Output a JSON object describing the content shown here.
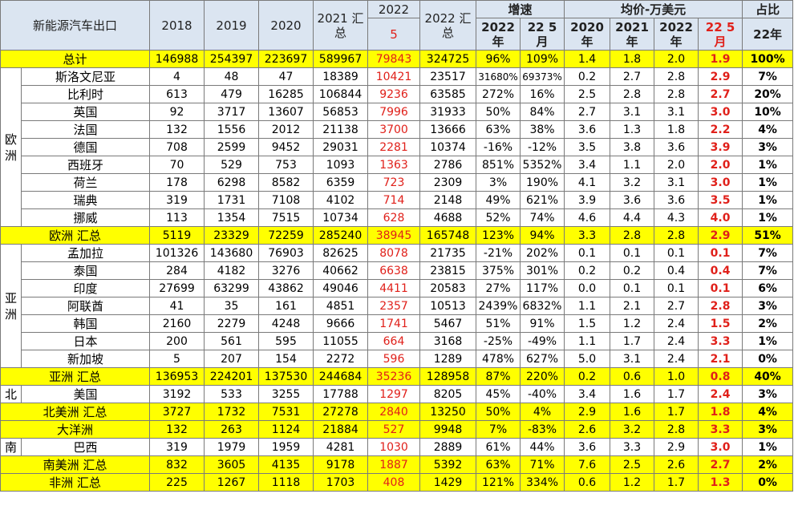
{
  "headers": {
    "title": "新能源汽车出口",
    "y2018": "2018",
    "y2019": "2019",
    "y2020": "2020",
    "y2021": "2021 汇\n总",
    "y2022_top": "2022",
    "y2022_bottom": "5",
    "y2022sum": "2022 汇\n总",
    "growth": "增速",
    "growth_a": "2022\n年",
    "growth_b": "22 5\n月",
    "avg": "均价-万美元",
    "avg_a": "2020\n年",
    "avg_b": "2021\n年",
    "avg_c": "2022\n年",
    "avg_d": "22 5\n月",
    "share": "占比",
    "share_sub": "22年"
  },
  "regions": {
    "europe": "欧\n洲",
    "asia": "亚\n洲",
    "north": "北",
    "south": "南"
  },
  "rows": [
    {
      "name": "总计",
      "cells": [
        "146988",
        "254397",
        "223697",
        "589967",
        "79843",
        "324725",
        "96%",
        "109%",
        "1.4",
        "1.8",
        "2.0",
        "1.9",
        "100%"
      ]
    },
    {
      "name": "斯洛文尼亚",
      "cells": [
        "4",
        "48",
        "47",
        "18389",
        "10421",
        "23517",
        "31680%",
        "69373%",
        "0.2",
        "2.7",
        "2.8",
        "2.9",
        "7%"
      ]
    },
    {
      "name": "比利时",
      "cells": [
        "613",
        "479",
        "16285",
        "106844",
        "9236",
        "63585",
        "272%",
        "16%",
        "2.5",
        "2.8",
        "2.8",
        "2.7",
        "20%"
      ]
    },
    {
      "name": "英国",
      "cells": [
        "92",
        "3717",
        "13607",
        "56853",
        "7996",
        "31933",
        "50%",
        "84%",
        "2.7",
        "3.1",
        "3.1",
        "3.0",
        "10%"
      ]
    },
    {
      "name": "法国",
      "cells": [
        "132",
        "1556",
        "2012",
        "21138",
        "3700",
        "13666",
        "63%",
        "38%",
        "3.6",
        "1.3",
        "1.8",
        "2.2",
        "4%"
      ]
    },
    {
      "name": "德国",
      "cells": [
        "708",
        "2599",
        "9452",
        "29031",
        "2281",
        "10374",
        "-16%",
        "-12%",
        "3.5",
        "3.8",
        "3.6",
        "3.9",
        "3%"
      ]
    },
    {
      "name": "西班牙",
      "cells": [
        "70",
        "529",
        "753",
        "1093",
        "1363",
        "2786",
        "851%",
        "5352%",
        "3.4",
        "1.1",
        "2.0",
        "2.0",
        "1%"
      ]
    },
    {
      "name": "荷兰",
      "cells": [
        "178",
        "6298",
        "8582",
        "6359",
        "723",
        "2309",
        "3%",
        "190%",
        "4.1",
        "3.2",
        "3.1",
        "3.0",
        "1%"
      ]
    },
    {
      "name": "瑞典",
      "cells": [
        "319",
        "1731",
        "7108",
        "4102",
        "714",
        "2148",
        "49%",
        "621%",
        "3.9",
        "3.6",
        "3.6",
        "3.5",
        "1%"
      ]
    },
    {
      "name": "挪威",
      "cells": [
        "113",
        "1354",
        "7515",
        "10734",
        "628",
        "4688",
        "52%",
        "74%",
        "4.6",
        "4.4",
        "4.3",
        "4.0",
        "1%"
      ]
    },
    {
      "name": "欧洲 汇总",
      "cells": [
        "5119",
        "23329",
        "72259",
        "285240",
        "38945",
        "165748",
        "123%",
        "94%",
        "3.3",
        "2.8",
        "2.8",
        "2.9",
        "51%"
      ]
    },
    {
      "name": "孟加拉",
      "cells": [
        "101326",
        "143680",
        "76903",
        "82625",
        "8078",
        "21735",
        "-21%",
        "202%",
        "0.1",
        "0.1",
        "0.1",
        "0.1",
        "7%"
      ]
    },
    {
      "name": "泰国",
      "cells": [
        "284",
        "4182",
        "3276",
        "40662",
        "6638",
        "23815",
        "375%",
        "301%",
        "0.2",
        "0.2",
        "0.4",
        "0.4",
        "7%"
      ]
    },
    {
      "name": "印度",
      "cells": [
        "27699",
        "63299",
        "43862",
        "49046",
        "4411",
        "20583",
        "27%",
        "117%",
        "0.0",
        "0.1",
        "0.1",
        "0.1",
        "6%"
      ]
    },
    {
      "name": "阿联酋",
      "cells": [
        "41",
        "35",
        "161",
        "4851",
        "2357",
        "10513",
        "2439%",
        "6832%",
        "1.1",
        "2.1",
        "2.7",
        "2.8",
        "3%"
      ]
    },
    {
      "name": "韩国",
      "cells": [
        "2160",
        "2279",
        "4248",
        "9666",
        "1741",
        "5467",
        "51%",
        "91%",
        "1.5",
        "1.2",
        "2.4",
        "1.5",
        "2%"
      ]
    },
    {
      "name": "日本",
      "cells": [
        "200",
        "561",
        "595",
        "11055",
        "664",
        "3168",
        "-25%",
        "-49%",
        "1.1",
        "1.7",
        "2.4",
        "3.3",
        "1%"
      ]
    },
    {
      "name": "新加坡",
      "cells": [
        "5",
        "207",
        "154",
        "2272",
        "596",
        "1289",
        "478%",
        "627%",
        "5.0",
        "3.1",
        "2.4",
        "2.1",
        "0%"
      ]
    },
    {
      "name": "亚洲 汇总",
      "cells": [
        "136953",
        "224201",
        "137530",
        "244684",
        "35236",
        "128958",
        "87%",
        "220%",
        "0.2",
        "0.6",
        "1.0",
        "0.8",
        "40%"
      ]
    },
    {
      "name": "美国",
      "cells": [
        "3192",
        "533",
        "3255",
        "17788",
        "1297",
        "8205",
        "45%",
        "-40%",
        "3.4",
        "1.6",
        "1.7",
        "2.4",
        "3%"
      ]
    },
    {
      "name": "北美洲 汇总",
      "cells": [
        "3727",
        "1732",
        "7531",
        "27278",
        "2840",
        "13250",
        "50%",
        "4%",
        "2.9",
        "1.6",
        "1.7",
        "1.8",
        "4%"
      ]
    },
    {
      "name": "大洋洲",
      "cells": [
        "132",
        "263",
        "1124",
        "21884",
        "527",
        "9948",
        "7%",
        "-83%",
        "2.6",
        "3.2",
        "2.8",
        "3.3",
        "3%"
      ]
    },
    {
      "name": "巴西",
      "cells": [
        "319",
        "1979",
        "1959",
        "4281",
        "1030",
        "2889",
        "61%",
        "44%",
        "3.6",
        "3.3",
        "2.9",
        "3.0",
        "1%"
      ]
    },
    {
      "name": "南美洲 汇总",
      "cells": [
        "832",
        "3605",
        "4135",
        "9178",
        "1887",
        "5392",
        "63%",
        "71%",
        "7.6",
        "2.5",
        "2.6",
        "2.7",
        "2%"
      ]
    },
    {
      "name": "非洲 汇总",
      "cells": [
        "225",
        "1267",
        "1118",
        "1703",
        "408",
        "1429",
        "121%",
        "334%",
        "0.6",
        "1.2",
        "1.7",
        "1.3",
        "0%"
      ]
    }
  ]
}
